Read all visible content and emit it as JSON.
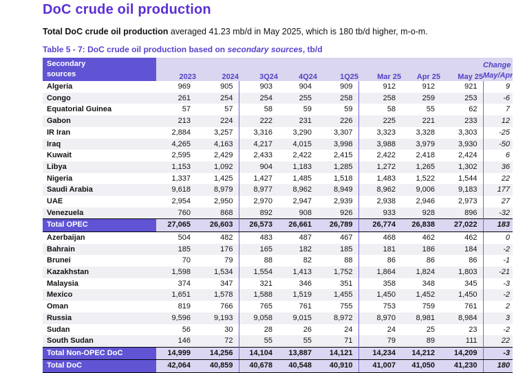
{
  "page": {
    "title": "DoC crude oil production",
    "intro_bold": "Total DoC crude oil production",
    "intro_rest": " averaged 41.23 mb/d in May 2025, which is 180 tb/d higher, m-o-m.",
    "caption_prefix": "Table 5 - 7: DoC crude oil production based on ",
    "caption_italic": "secondary sources",
    "caption_suffix": ", tb/d"
  },
  "colors": {
    "accent_purple": "#5b2fd3",
    "header_purple_bg": "#6054d4",
    "header_lavender_bg": "#dad6f0",
    "header_text": "#5243c4",
    "total_row_bg": "#dbd7f2",
    "alt_row_bg": "#f0eff4",
    "separator_line": "#7166d8"
  },
  "table": {
    "header": {
      "col0_line1": "Secondary",
      "col0_line2": "sources",
      "columns": [
        "2023",
        "2024",
        "3Q24",
        "4Q24",
        "1Q25",
        "Mar 25",
        "Apr 25",
        "May 25"
      ],
      "change_line1": "Change",
      "change_line2": "May/Apr"
    },
    "rows": [
      {
        "type": "data",
        "label": "Algeria",
        "values": [
          "969",
          "905",
          "903",
          "904",
          "909",
          "912",
          "912",
          "921"
        ],
        "change": "9"
      },
      {
        "type": "data",
        "label": "Congo",
        "values": [
          "261",
          "254",
          "254",
          "255",
          "258",
          "258",
          "259",
          "253"
        ],
        "change": "-6"
      },
      {
        "type": "data",
        "label": "Equatorial Guinea",
        "values": [
          "57",
          "57",
          "58",
          "59",
          "59",
          "58",
          "55",
          "62"
        ],
        "change": "7"
      },
      {
        "type": "data",
        "label": "Gabon",
        "values": [
          "213",
          "224",
          "222",
          "231",
          "226",
          "225",
          "221",
          "233"
        ],
        "change": "12"
      },
      {
        "type": "data",
        "label": "IR Iran",
        "values": [
          "2,884",
          "3,257",
          "3,316",
          "3,290",
          "3,307",
          "3,323",
          "3,328",
          "3,303"
        ],
        "change": "-25"
      },
      {
        "type": "data",
        "label": "Iraq",
        "values": [
          "4,265",
          "4,163",
          "4,217",
          "4,015",
          "3,998",
          "3,988",
          "3,979",
          "3,930"
        ],
        "change": "-50"
      },
      {
        "type": "data",
        "label": "Kuwait",
        "values": [
          "2,595",
          "2,429",
          "2,433",
          "2,422",
          "2,415",
          "2,422",
          "2,418",
          "2,424"
        ],
        "change": "6"
      },
      {
        "type": "data",
        "label": "Libya",
        "values": [
          "1,153",
          "1,092",
          "904",
          "1,183",
          "1,285",
          "1,272",
          "1,265",
          "1,302"
        ],
        "change": "36"
      },
      {
        "type": "data",
        "label": "Nigeria",
        "values": [
          "1,337",
          "1,425",
          "1,427",
          "1,485",
          "1,518",
          "1,483",
          "1,522",
          "1,544"
        ],
        "change": "22"
      },
      {
        "type": "data",
        "label": "Saudi Arabia",
        "values": [
          "9,618",
          "8,979",
          "8,977",
          "8,962",
          "8,949",
          "8,962",
          "9,006",
          "9,183"
        ],
        "change": "177"
      },
      {
        "type": "data",
        "label": "UAE",
        "values": [
          "2,954",
          "2,950",
          "2,970",
          "2,947",
          "2,939",
          "2,938",
          "2,946",
          "2,973"
        ],
        "change": "27"
      },
      {
        "type": "data",
        "label": "Venezuela",
        "values": [
          "760",
          "868",
          "892",
          "908",
          "926",
          "933",
          "928",
          "896"
        ],
        "change": "-32"
      },
      {
        "type": "total",
        "label": "Total  OPEC",
        "values": [
          "27,065",
          "26,603",
          "26,573",
          "26,661",
          "26,789",
          "26,774",
          "26,838",
          "27,022"
        ],
        "change": "183"
      },
      {
        "type": "data",
        "label": "Azerbaijan",
        "values": [
          "504",
          "482",
          "483",
          "487",
          "467",
          "468",
          "462",
          "462"
        ],
        "change": "0"
      },
      {
        "type": "data",
        "label": "Bahrain",
        "values": [
          "185",
          "176",
          "165",
          "182",
          "185",
          "181",
          "186",
          "184"
        ],
        "change": "-2"
      },
      {
        "type": "data",
        "label": "Brunei",
        "values": [
          "70",
          "79",
          "88",
          "82",
          "88",
          "86",
          "86",
          "86"
        ],
        "change": "-1"
      },
      {
        "type": "data",
        "label": "Kazakhstan",
        "values": [
          "1,598",
          "1,534",
          "1,554",
          "1,413",
          "1,752",
          "1,864",
          "1,824",
          "1,803"
        ],
        "change": "-21"
      },
      {
        "type": "data",
        "label": "Malaysia",
        "values": [
          "374",
          "347",
          "321",
          "346",
          "351",
          "358",
          "348",
          "345"
        ],
        "change": "-3"
      },
      {
        "type": "data",
        "label": "Mexico",
        "values": [
          "1,651",
          "1,578",
          "1,588",
          "1,519",
          "1,455",
          "1,450",
          "1,452",
          "1,450"
        ],
        "change": "-2"
      },
      {
        "type": "data",
        "label": "Oman",
        "values": [
          "819",
          "766",
          "765",
          "761",
          "755",
          "753",
          "759",
          "761"
        ],
        "change": "2"
      },
      {
        "type": "data",
        "label": "Russia",
        "values": [
          "9,596",
          "9,193",
          "9,058",
          "9,015",
          "8,972",
          "8,970",
          "8,981",
          "8,984"
        ],
        "change": "3"
      },
      {
        "type": "data",
        "label": "Sudan",
        "values": [
          "56",
          "30",
          "28",
          "26",
          "24",
          "24",
          "25",
          "23"
        ],
        "change": "-2"
      },
      {
        "type": "data",
        "label": "South Sudan",
        "values": [
          "146",
          "72",
          "55",
          "55",
          "71",
          "79",
          "89",
          "111"
        ],
        "change": "22"
      },
      {
        "type": "total",
        "label": "Total Non-OPEC DoC",
        "values": [
          "14,999",
          "14,256",
          "14,104",
          "13,887",
          "14,121",
          "14,234",
          "14,212",
          "14,209"
        ],
        "change": "-3"
      },
      {
        "type": "total",
        "label": "Total DoC",
        "values": [
          "42,064",
          "40,859",
          "40,678",
          "40,548",
          "40,910",
          "41,007",
          "41,050",
          "41,230"
        ],
        "change": "180"
      }
    ]
  }
}
